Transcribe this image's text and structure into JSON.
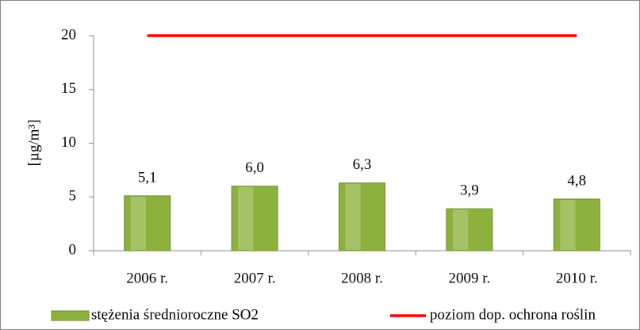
{
  "chart_data": {
    "type": "bar",
    "categories": [
      "2006 r.",
      "2007 r.",
      "2008 r.",
      "2009 r.",
      "2010 r."
    ],
    "series": [
      {
        "name": "stężenia średnioroczne SO2",
        "type": "bar",
        "color": "#8db13d",
        "values": [
          5.1,
          6.0,
          6.3,
          3.9,
          4.8
        ],
        "value_labels": [
          "5,1",
          "6,0",
          "6,3",
          "3,9",
          "4,8"
        ]
      },
      {
        "name": "poziom dop. ochrona roślin",
        "type": "line",
        "color": "#ff0000",
        "values": [
          20,
          20,
          20,
          20,
          20
        ]
      }
    ],
    "y_label": "[µg/m³]",
    "ylim": [
      0,
      20
    ],
    "yticks": [
      0,
      5,
      10,
      15,
      20
    ],
    "grid": false,
    "legend": "bottom"
  }
}
